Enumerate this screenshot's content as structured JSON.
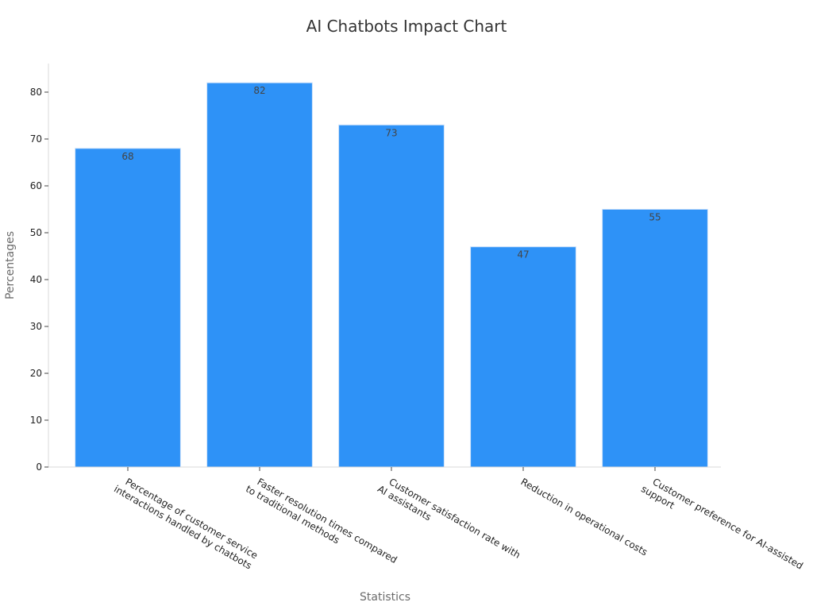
{
  "colors": {
    "bar": "#2e92f7"
  },
  "chart_data": {
    "type": "bar",
    "title": "AI Chatbots Impact Chart",
    "xlabel": "Statistics",
    "ylabel": "Percentages",
    "categories": [
      [
        "Percentage of customer service",
        "interactions handled by chatbots"
      ],
      [
        "Faster resolution times compared",
        "to traditional methods"
      ],
      [
        "Customer satisfaction rate with",
        "AI assistants"
      ],
      [
        "Reduction in operational costs"
      ],
      [
        "Customer preference for AI-assisted",
        "support"
      ]
    ],
    "values": [
      68,
      82,
      73,
      47,
      55
    ],
    "data_labels": [
      "68",
      "82",
      "73",
      "47",
      "55"
    ],
    "yticks": [
      0,
      10,
      20,
      30,
      40,
      50,
      60,
      70,
      80
    ],
    "ylim": [
      0,
      86.1
    ],
    "grid": false,
    "legend": "none"
  }
}
